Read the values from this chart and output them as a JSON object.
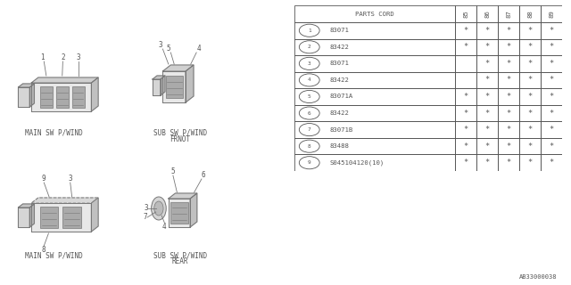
{
  "bg_color": "#ffffff",
  "line_color": "#777777",
  "text_color": "#555555",
  "title_code": "AB33000038",
  "table": {
    "header_col": "PARTS CORD",
    "years": [
      "85",
      "86",
      "87",
      "88",
      "89"
    ],
    "rows": [
      {
        "num": "1",
        "part": "83071",
        "marks": [
          true,
          true,
          true,
          true,
          true
        ]
      },
      {
        "num": "2",
        "part": "83422",
        "marks": [
          true,
          true,
          true,
          true,
          true
        ]
      },
      {
        "num": "3",
        "part": "83071",
        "marks": [
          false,
          true,
          true,
          true,
          true
        ]
      },
      {
        "num": "4",
        "part": "83422",
        "marks": [
          false,
          true,
          true,
          true,
          true
        ]
      },
      {
        "num": "5",
        "part": "83071A",
        "marks": [
          true,
          true,
          true,
          true,
          true
        ]
      },
      {
        "num": "6",
        "part": "83422",
        "marks": [
          true,
          true,
          true,
          true,
          true
        ]
      },
      {
        "num": "7",
        "part": "83071B",
        "marks": [
          true,
          true,
          true,
          true,
          true
        ]
      },
      {
        "num": "8",
        "part": "83488",
        "marks": [
          true,
          true,
          true,
          true,
          true
        ]
      },
      {
        "num": "9",
        "part": "S045104120(10)",
        "marks": [
          true,
          true,
          true,
          true,
          true
        ]
      }
    ]
  }
}
